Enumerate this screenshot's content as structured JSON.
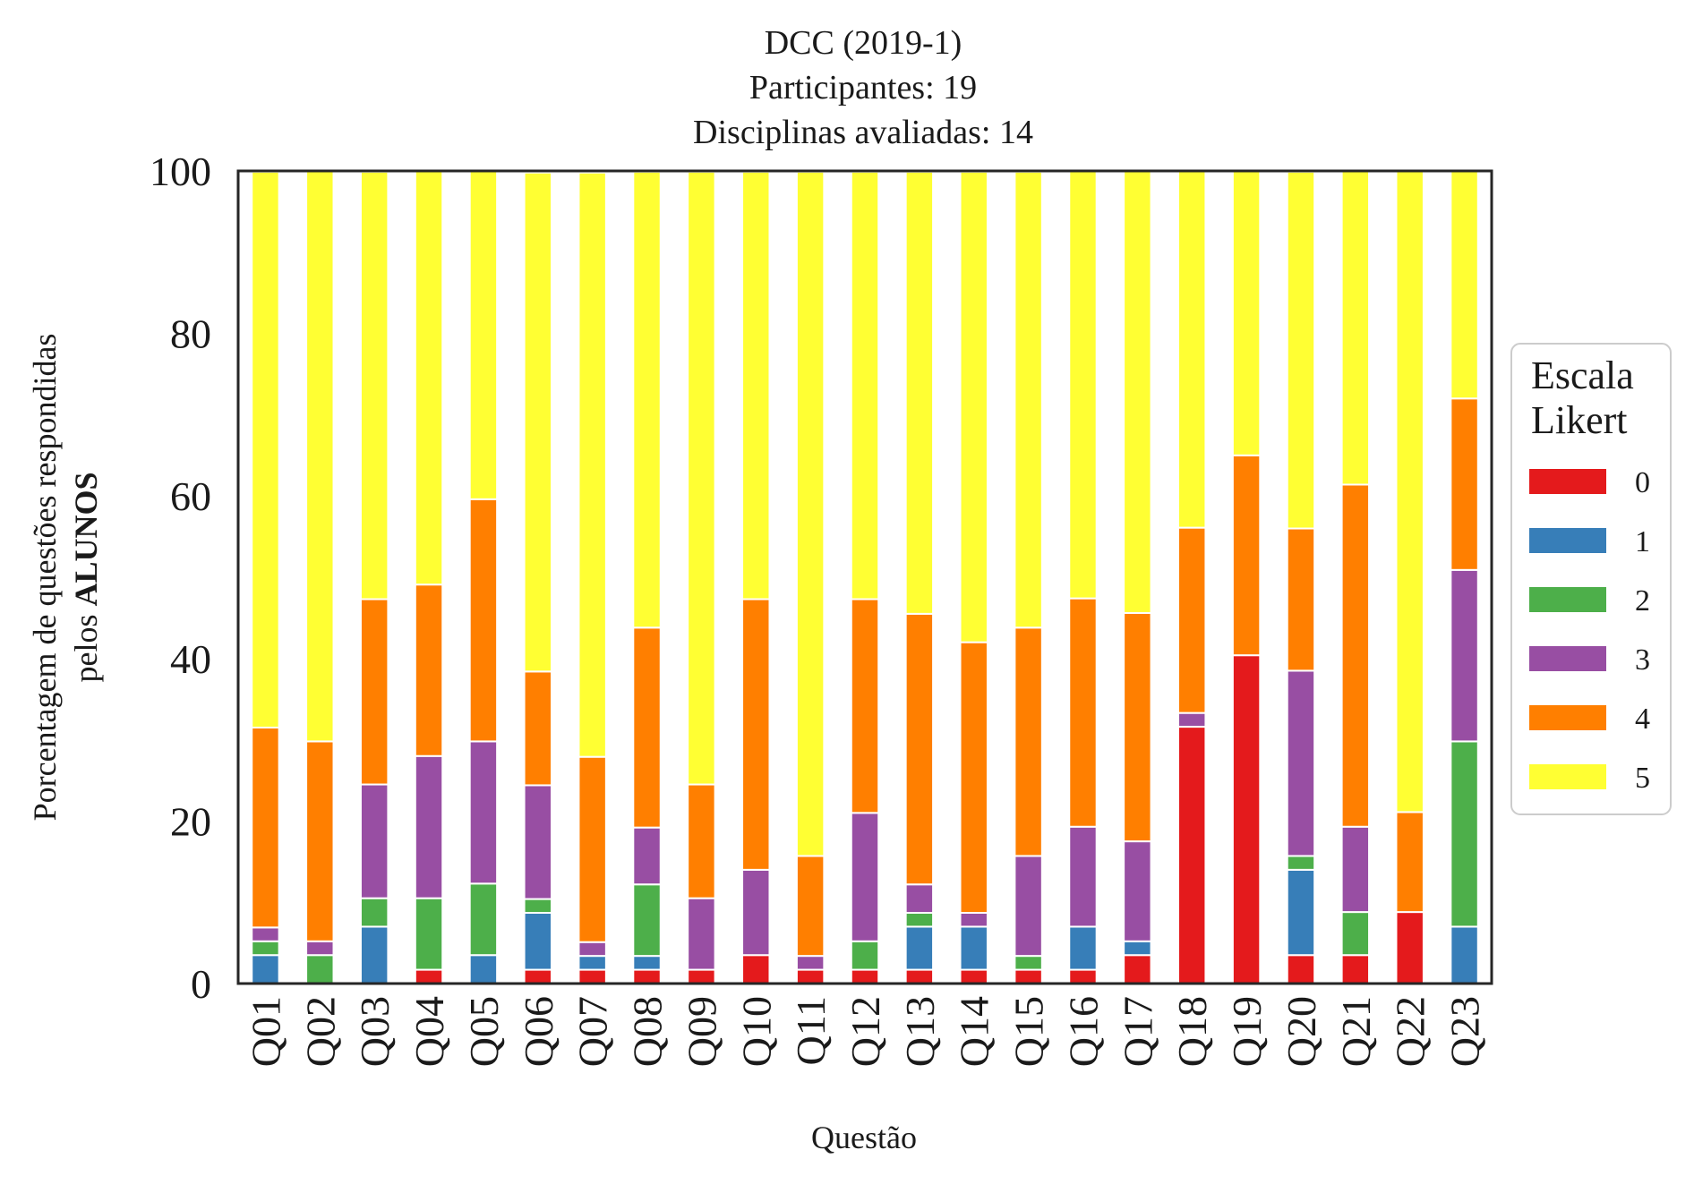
{
  "chart_data": {
    "type": "bar",
    "stacked": true,
    "title_lines": [
      "DCC (2019-1)",
      "Participantes: 19",
      "Disciplinas avaliadas: 14"
    ],
    "xlabel": "Questão",
    "ylabel_line1": "Porcentagem de questões respondidas",
    "ylabel_line2_prefix": "pelos ",
    "ylabel_line2_bold": "ALUNOS",
    "ylim": [
      0,
      100
    ],
    "yticks": [
      0,
      20,
      40,
      60,
      80,
      100
    ],
    "grid": false,
    "legend": {
      "title_lines": [
        "Escala",
        "Likert"
      ],
      "placement": "right-outside"
    },
    "categories": [
      "Q01",
      "Q02",
      "Q03",
      "Q04",
      "Q05",
      "Q06",
      "Q07",
      "Q08",
      "Q09",
      "Q10",
      "Q11",
      "Q12",
      "Q13",
      "Q14",
      "Q15",
      "Q16",
      "Q17",
      "Q18",
      "Q19",
      "Q20",
      "Q21",
      "Q22",
      "Q23"
    ],
    "series": [
      {
        "name": "0",
        "color": "#e41a1c",
        "values": [
          0,
          0,
          0,
          1.7,
          0,
          1.7,
          1.7,
          1.7,
          1.7,
          3.5,
          1.7,
          1.7,
          1.7,
          1.7,
          1.7,
          1.7,
          3.5,
          31.6,
          40.4,
          3.5,
          3.5,
          8.8,
          0
        ]
      },
      {
        "name": "1",
        "color": "#377eb8",
        "values": [
          3.5,
          0,
          7.0,
          0,
          3.5,
          7.0,
          1.7,
          1.7,
          0,
          0,
          0,
          0,
          5.3,
          5.3,
          0,
          5.3,
          1.7,
          0,
          0,
          10.5,
          0,
          0,
          7.0
        ]
      },
      {
        "name": "2",
        "color": "#4daf4a",
        "values": [
          1.7,
          3.5,
          3.5,
          8.8,
          8.8,
          1.7,
          0,
          8.8,
          0,
          0,
          0,
          3.5,
          1.7,
          0,
          1.7,
          0,
          0,
          0,
          0,
          1.7,
          5.3,
          0,
          22.8
        ]
      },
      {
        "name": "3",
        "color": "#984ea3",
        "values": [
          1.7,
          1.7,
          14.0,
          17.5,
          17.5,
          14.0,
          1.7,
          7.0,
          8.8,
          10.5,
          1.7,
          15.8,
          3.5,
          1.7,
          12.3,
          12.3,
          12.3,
          1.7,
          0,
          22.8,
          10.5,
          0,
          21.1
        ]
      },
      {
        "name": "4",
        "color": "#ff7f00",
        "values": [
          24.6,
          24.6,
          22.8,
          21.1,
          29.8,
          14.0,
          22.8,
          24.6,
          14.0,
          33.3,
          12.3,
          26.3,
          33.3,
          33.3,
          28.1,
          28.1,
          28.1,
          22.8,
          24.6,
          17.5,
          42.1,
          12.3,
          21.1
        ]
      },
      {
        "name": "5",
        "color": "#ffff33",
        "values": [
          68.4,
          70.2,
          52.6,
          50.9,
          40.4,
          61.4,
          71.9,
          56.1,
          75.4,
          52.6,
          84.2,
          52.6,
          54.4,
          57.9,
          56.1,
          52.6,
          54.4,
          43.9,
          35.1,
          43.9,
          38.6,
          78.9,
          28.1
        ]
      }
    ]
  }
}
